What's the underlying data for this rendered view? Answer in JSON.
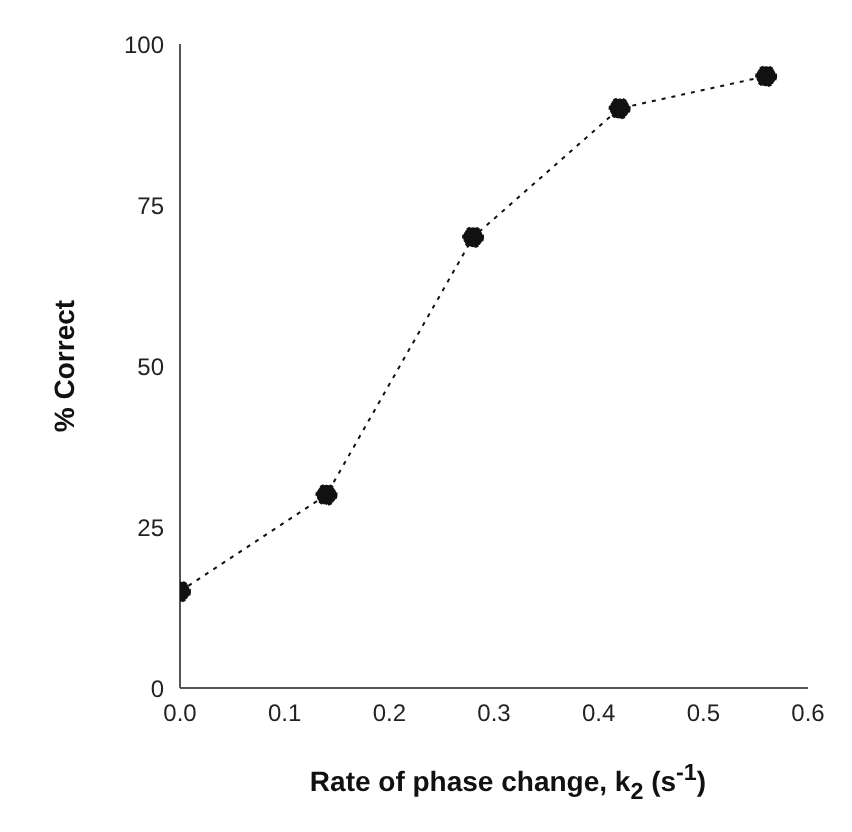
{
  "chart_data": {
    "type": "line",
    "xlabel": "Rate of phase change, k$_{2}$ (s$^{-1}$)",
    "ylabel": "% Correct",
    "x": [
      0,
      0.14,
      0.28,
      0.42,
      0.56
    ],
    "series": [
      {
        "color": "#111111",
        "values": [
          15,
          30,
          70,
          90,
          95
        ]
      }
    ],
    "xlim": [
      0,
      0.6
    ],
    "xticks": [
      {
        "value": 0,
        "label": "0.0"
      },
      {
        "value": 0.1,
        "label": "0.1"
      },
      {
        "value": 0.2,
        "label": "0.2"
      },
      {
        "value": 0.3,
        "label": "0.3"
      },
      {
        "value": 0.4,
        "label": "0.4"
      },
      {
        "value": 0.5,
        "label": "0.5"
      },
      {
        "value": 0.6,
        "label": "0.6"
      }
    ],
    "ylim": [
      0,
      100
    ],
    "yticks": [
      0,
      25,
      50,
      75,
      100
    ],
    "grid": false,
    "marker": "circle",
    "line_style": "dotted"
  }
}
